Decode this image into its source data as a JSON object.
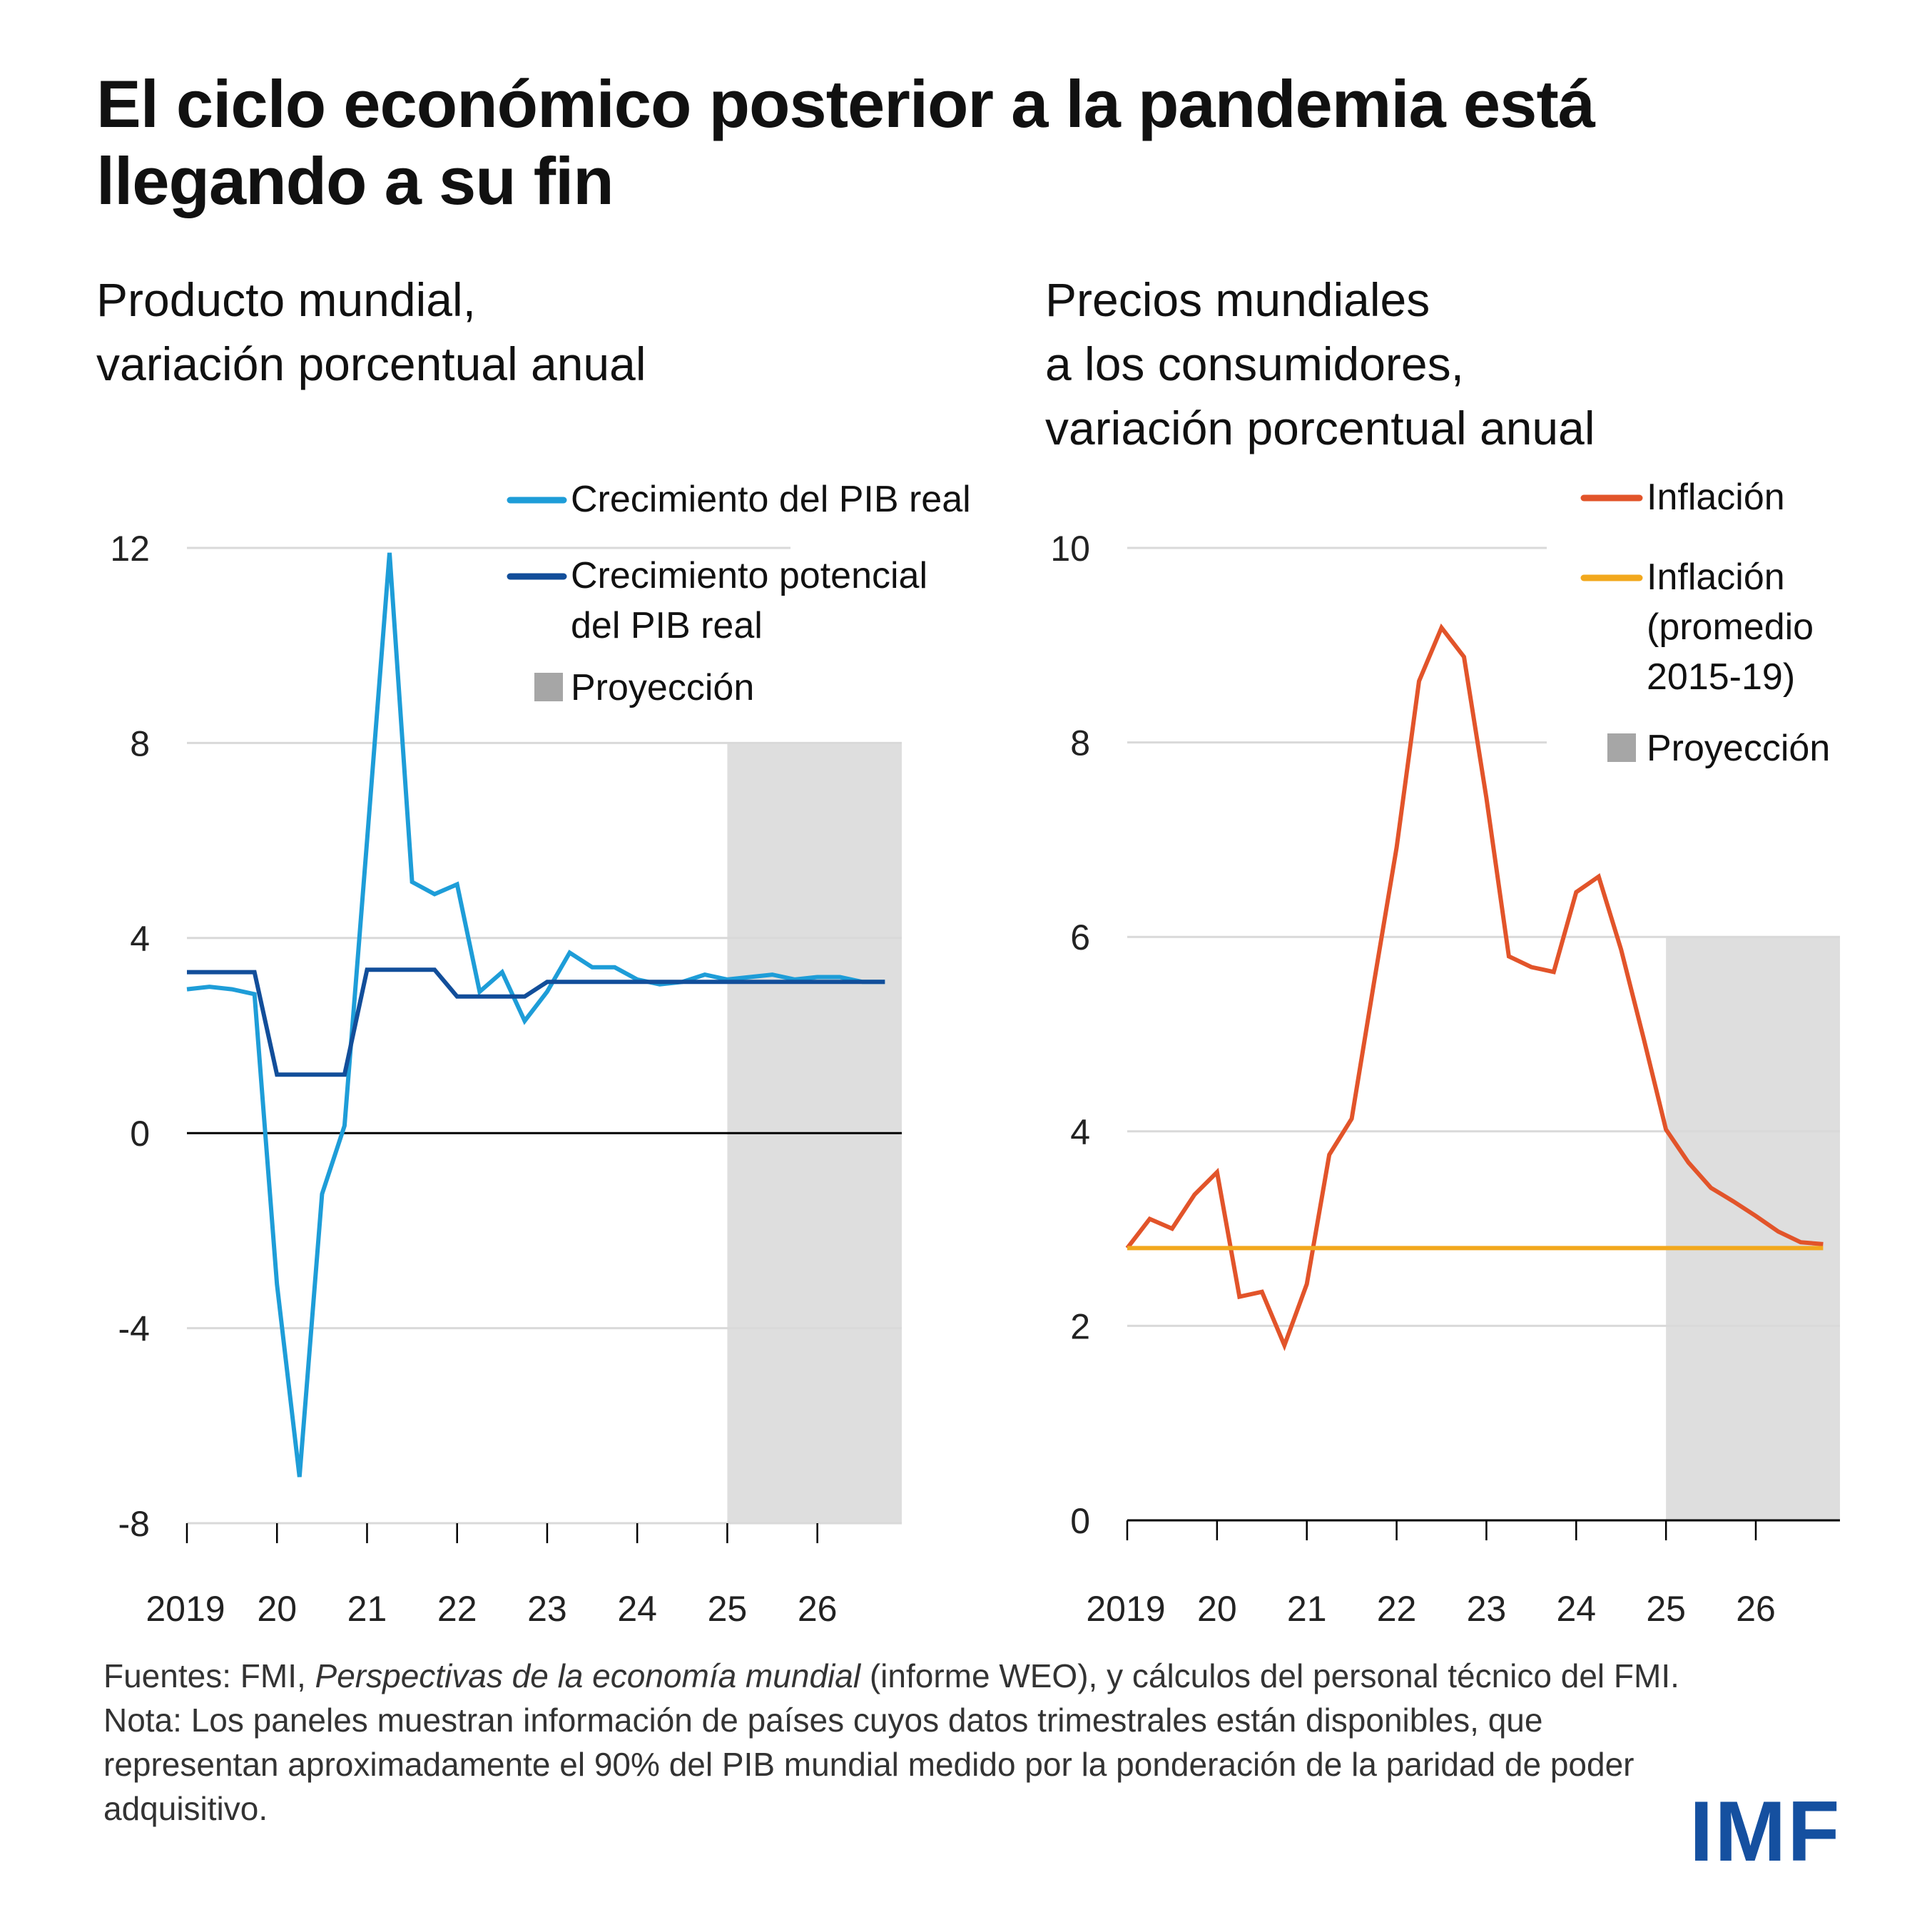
{
  "title": "El ciclo económico posterior a la pandemia está llegando a su fin",
  "colors": {
    "gdp": "#1e9dd8",
    "potential": "#124e9a",
    "inflation": "#e2542a",
    "inflation_avg": "#f2a81d",
    "projection": "#dedede",
    "projection_legend": "#a6a6a6",
    "gridline": "#d9d9d9",
    "axis": "#000000",
    "logo": "#1550a0"
  },
  "chart_data": [
    {
      "type": "line",
      "title": "Producto mundial,\nvariación porcentual anual",
      "title_lines": [
        "Producto mundial,",
        "variación porcentual anual"
      ],
      "xlabel": "",
      "ylabel": "",
      "x_tick_labels": [
        "2019",
        "20",
        "21",
        "22",
        "23",
        "24",
        "25",
        "26"
      ],
      "x_start": "2019Q1",
      "frequency": "quarterly",
      "ylim": [
        -8,
        12
      ],
      "y_ticks": [
        -8,
        -4,
        0,
        4,
        8,
        12
      ],
      "y_tick_labels": [
        "-8",
        "-4",
        "0",
        "4",
        "8",
        "12"
      ],
      "grid": true,
      "zero_line": true,
      "projection_start": "2025Q1",
      "projection_top": 8,
      "legend_position": "top-right",
      "legend": [
        {
          "type": "line",
          "label_lines": [
            "Crecimiento del PIB real"
          ],
          "color_key": "gdp"
        },
        {
          "type": "line",
          "label_lines": [
            "Crecimiento potencial",
            "del PIB real"
          ],
          "color_key": "potential"
        },
        {
          "type": "box",
          "label_lines": [
            "Proyección"
          ],
          "color_key": "projection_legend"
        }
      ],
      "series": [
        {
          "name": "Crecimiento del PIB real",
          "color_key": "gdp",
          "values": [
            2.95,
            3.0,
            2.95,
            2.85,
            -3.1,
            -7.05,
            -1.25,
            0.15,
            6.0,
            11.9,
            5.15,
            4.9,
            5.1,
            2.9,
            3.3,
            2.3,
            2.9,
            3.7,
            3.4,
            3.4,
            3.15,
            3.05,
            3.1,
            3.25,
            3.15,
            3.2,
            3.25,
            3.15,
            3.2,
            3.2,
            3.1,
            3.1
          ]
        },
        {
          "name": "Crecimiento potencial del PIB real",
          "color_key": "potential",
          "values": [
            3.3,
            3.3,
            3.3,
            3.3,
            1.2,
            1.2,
            1.2,
            1.2,
            3.35,
            3.35,
            3.35,
            3.35,
            2.8,
            2.8,
            2.8,
            2.8,
            3.1,
            3.1,
            3.1,
            3.1,
            3.1,
            3.1,
            3.1,
            3.1,
            3.1,
            3.1,
            3.1,
            3.1,
            3.1,
            3.1,
            3.1,
            3.1
          ]
        }
      ]
    },
    {
      "type": "line",
      "title": "Precios mundiales\na los consumidores,\nvariación porcentual anual",
      "title_lines": [
        "Precios mundiales",
        "a los consumidores,",
        "variación porcentual anual"
      ],
      "xlabel": "",
      "ylabel": "",
      "x_tick_labels": [
        "2019",
        "20",
        "21",
        "22",
        "23",
        "24",
        "25",
        "26"
      ],
      "x_start": "2019Q1",
      "frequency": "quarterly",
      "ylim": [
        0,
        10
      ],
      "y_ticks": [
        0,
        2,
        4,
        6,
        8,
        10
      ],
      "y_tick_labels": [
        "0",
        "2",
        "4",
        "6",
        "8",
        "10"
      ],
      "grid": true,
      "zero_line": true,
      "projection_start": "2025Q1",
      "projection_top": 6,
      "legend_position": "top-right",
      "legend": [
        {
          "type": "line",
          "label_lines": [
            "Inflación"
          ],
          "color_key": "inflation"
        },
        {
          "type": "line",
          "label_lines": [
            "Inflación",
            "(promedio",
            "2015-19)"
          ],
          "color_key": "inflation_avg"
        },
        {
          "type": "box",
          "label_lines": [
            "Proyección"
          ],
          "color_key": "projection_legend"
        }
      ],
      "series": [
        {
          "name": "Inflación",
          "color_key": "inflation",
          "values": [
            2.8,
            3.1,
            3.0,
            3.35,
            3.58,
            2.3,
            2.35,
            1.8,
            2.43,
            3.76,
            4.13,
            5.54,
            6.92,
            8.63,
            9.18,
            8.88,
            7.43,
            5.8,
            5.69,
            5.64,
            6.46,
            6.62,
            5.87,
            4.96,
            4.02,
            3.68,
            3.42,
            3.28,
            3.13,
            2.97,
            2.86,
            2.84
          ]
        },
        {
          "name": "Inflación (promedio 2015-19)",
          "color_key": "inflation_avg",
          "values": [
            2.8,
            2.8,
            2.8,
            2.8,
            2.8,
            2.8,
            2.8,
            2.8,
            2.8,
            2.8,
            2.8,
            2.8,
            2.8,
            2.8,
            2.8,
            2.8,
            2.8,
            2.8,
            2.8,
            2.8,
            2.8,
            2.8,
            2.8,
            2.8,
            2.8,
            2.8,
            2.8,
            2.8,
            2.8,
            2.8,
            2.8,
            2.8
          ]
        }
      ]
    }
  ],
  "footer": {
    "sources_prefix": "Fuentes: FMI, ",
    "sources_italic": "Perspectivas de la economía mundial",
    "sources_suffix": " (informe WEO), y cálculos del personal técnico del FMI.",
    "note": "Nota: Los paneles muestran información de países cuyos datos trimestrales están disponibles, que representan aproximadamente el 90% del PIB mundial medido por la ponderación de la paridad de poder adquisitivo."
  },
  "logo": "IMF"
}
